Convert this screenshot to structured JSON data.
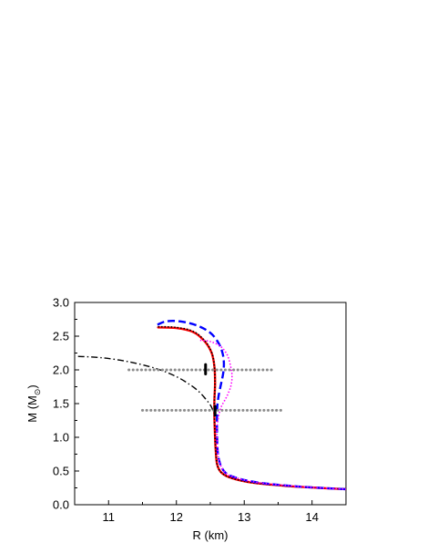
{
  "chart_data": {
    "type": "line",
    "title": "",
    "xlabel": "R (km)",
    "ylabel_main": "M (M",
    "ylabel_sub": "⊙",
    "ylabel_end": ")",
    "xlim": [
      10.5,
      14.5
    ],
    "ylim": [
      0.0,
      3.0
    ],
    "xticks": [
      11,
      12,
      13,
      14
    ],
    "xtick_labels": [
      "11",
      "12",
      "13",
      "14"
    ],
    "yticks": [
      0.0,
      0.5,
      1.0,
      1.5,
      2.0,
      2.5,
      3.0
    ],
    "ytick_labels": [
      "0.0",
      "0.5",
      "1.0",
      "1.5",
      "2.0",
      "2.5",
      "3.0"
    ],
    "grid": false,
    "legend": "none",
    "series": [
      {
        "style": "dashdot",
        "color": "#000000",
        "x": [
          10.55,
          10.9,
          11.3,
          11.7,
          12.0,
          12.2,
          12.33,
          12.43,
          12.5,
          12.53,
          12.55
        ],
        "y": [
          2.2,
          2.18,
          2.12,
          2.02,
          1.9,
          1.78,
          1.68,
          1.57,
          1.48,
          1.42,
          1.36
        ]
      },
      {
        "style": "solid",
        "color": "#ff0000",
        "x": [
          11.73,
          12.0,
          12.25,
          12.42,
          12.52,
          12.56,
          12.57,
          12.56,
          12.56,
          12.57,
          12.58,
          12.6,
          12.66,
          12.8,
          13.1,
          13.6,
          14.1,
          14.5
        ],
        "y": [
          2.63,
          2.62,
          2.56,
          2.42,
          2.25,
          2.05,
          1.8,
          1.55,
          1.3,
          1.0,
          0.8,
          0.6,
          0.48,
          0.4,
          0.33,
          0.28,
          0.25,
          0.23
        ]
      },
      {
        "style": "dotted",
        "color": "#000000",
        "x": [
          11.73,
          12.0,
          12.25,
          12.42,
          12.52,
          12.56,
          12.57,
          12.56,
          12.56,
          12.57,
          12.58,
          12.6,
          12.66,
          12.8,
          13.1,
          13.6,
          14.1,
          14.5
        ],
        "y": [
          2.64,
          2.63,
          2.57,
          2.43,
          2.26,
          2.06,
          1.81,
          1.56,
          1.31,
          1.0,
          0.8,
          0.6,
          0.48,
          0.4,
          0.33,
          0.28,
          0.25,
          0.23
        ]
      },
      {
        "style": "dashed",
        "color": "#0000ff",
        "x": [
          11.72,
          11.85,
          12.05,
          12.3,
          12.5,
          12.62,
          12.68,
          12.7,
          12.69,
          12.66,
          12.62,
          12.6,
          12.6,
          12.62,
          12.7,
          12.85,
          13.2,
          13.8,
          14.5
        ],
        "y": [
          2.67,
          2.72,
          2.72,
          2.66,
          2.55,
          2.4,
          2.25,
          2.1,
          1.95,
          1.8,
          1.6,
          1.4,
          1.0,
          0.7,
          0.5,
          0.41,
          0.33,
          0.27,
          0.23
        ]
      },
      {
        "style": "dotted",
        "color": "#ff00ff",
        "x": [
          12.35,
          12.5,
          12.65,
          12.75,
          12.8,
          12.82,
          12.8,
          12.74,
          12.66,
          12.62,
          12.6,
          12.6,
          12.62,
          12.7,
          12.85,
          13.2,
          13.8,
          14.5
        ],
        "y": [
          2.44,
          2.42,
          2.35,
          2.22,
          2.05,
          1.9,
          1.75,
          1.6,
          1.45,
          1.3,
          1.15,
          1.0,
          0.7,
          0.5,
          0.41,
          0.33,
          0.27,
          0.23
        ]
      },
      {
        "style": "gray-dotted",
        "color": "#8c8c8c",
        "x": [
          11.3,
          13.45
        ],
        "y": [
          2.0,
          2.0
        ]
      },
      {
        "style": "gray-dotted",
        "color": "#8c8c8c",
        "x": [
          11.5,
          13.55
        ],
        "y": [
          1.4,
          1.4
        ]
      }
    ],
    "error_bars": [
      {
        "x": 12.43,
        "y_low": 1.94,
        "y_high": 2.08,
        "color": "#000000"
      },
      {
        "x": 12.57,
        "y_low": 1.33,
        "y_high": 1.46,
        "color": "#000000"
      }
    ]
  }
}
